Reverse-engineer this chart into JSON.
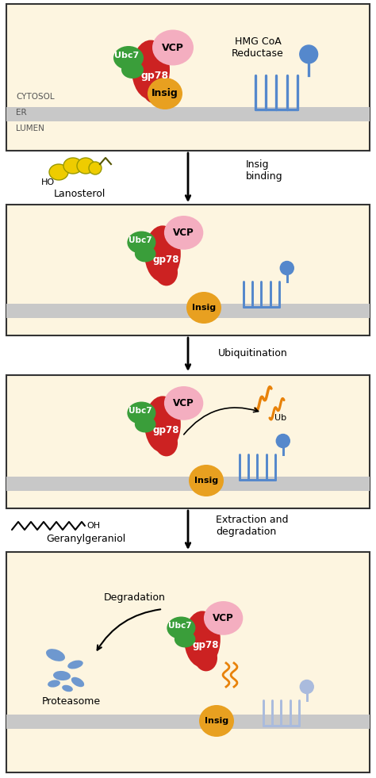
{
  "bg_color": "#fdf5e0",
  "membrane_color": "#c8c8c8",
  "border_color": "#333333",
  "panel_bg": "#fdf5e0",
  "white_bg": "#ffffff",
  "colors": {
    "vcp": "#f4aec0",
    "ubc7": "#3a9e3a",
    "gp78": "#cc2222",
    "insig": "#e8a020",
    "hmgcoa_blue": "#5588cc",
    "ubiquitin": "#e8820a",
    "lanosterol": "#eecc00",
    "proteasome": "#5588cc"
  },
  "labels": {
    "vcp": "VCP",
    "ubc7": "Ubc7",
    "gp78": "gp78",
    "insig": "Insig",
    "hmgcoa": "HMG CoA\nReductase",
    "cytosol": "CYTOSOL",
    "er": "ER",
    "lumen": "LUMEN",
    "lanosterol": "Lanosterol",
    "insig_binding": "Insig\nbinding",
    "ubiquitination": "Ubiquitination",
    "ub": "Ub",
    "extraction": "Extraction and\ndegradation",
    "geranyl": "Geranylgeraniol",
    "degradation": "Degradation",
    "proteasome": "Proteasome"
  },
  "figsize": [
    4.74,
    9.81
  ],
  "dpi": 100
}
